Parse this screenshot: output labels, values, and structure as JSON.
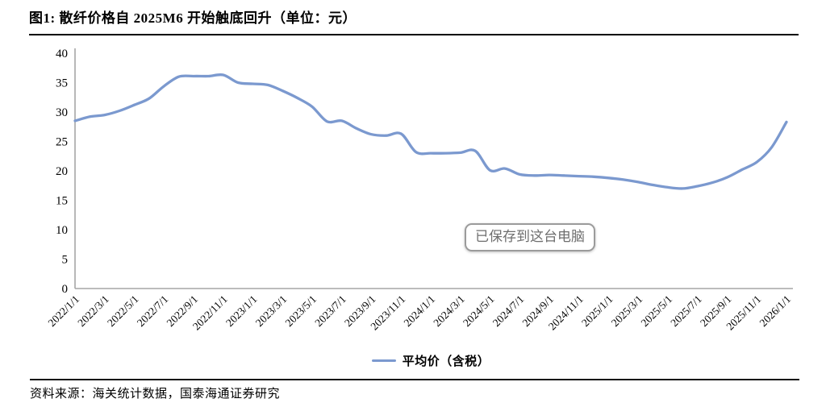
{
  "figure": {
    "title": "图1: 散纤价格自 2025M6 开始触底回升（单位：元）",
    "source": "资料来源：海关统计数据，国泰海通证券研究"
  },
  "toast": {
    "text": "已保存到这台电脑"
  },
  "legend": {
    "label": "平均价（含税）"
  },
  "colors": {
    "line": "#7b99cf",
    "axis": "#a6a6a6",
    "rule": "#000000",
    "toast_border": "#9b9b9b",
    "toast_text": "#6e6e6e"
  },
  "chart_data": {
    "type": "line",
    "title": "图1: 散纤价格自 2025M6 开始触底回升（单位：元）",
    "unit": "元",
    "ylim": [
      0,
      40
    ],
    "yticks": [
      0,
      5,
      10,
      15,
      20,
      25,
      30,
      35,
      40
    ],
    "grid": false,
    "legend_position": "bottom",
    "x_tick_labels": [
      "2022/1/1",
      "2022/3/1",
      "2022/5/1",
      "2022/7/1",
      "2022/9/1",
      "2022/11/1",
      "2023/1/1",
      "2023/3/1",
      "2023/5/1",
      "2023/7/1",
      "2023/9/1",
      "2023/11/1",
      "2024/1/1",
      "2024/3/1",
      "2024/5/1",
      "2024/7/1",
      "2024/9/1",
      "2024/11/1",
      "2025/1/1",
      "2025/3/1",
      "2025/5/1",
      "2025/7/1",
      "2025/9/1",
      "2025/11/1",
      "2026/1/1"
    ],
    "series": [
      {
        "name": "平均价（含税）",
        "color": "#7b99cf",
        "x": [
          "2022/1",
          "2022/2",
          "2022/3",
          "2022/4",
          "2022/5",
          "2022/6",
          "2022/7",
          "2022/8",
          "2022/9",
          "2022/10",
          "2022/11",
          "2022/12",
          "2023/1",
          "2023/2",
          "2023/3",
          "2023/4",
          "2023/5",
          "2023/6",
          "2023/7",
          "2023/8",
          "2023/9",
          "2023/10",
          "2023/11",
          "2023/12",
          "2024/1",
          "2024/2",
          "2024/3",
          "2024/4",
          "2024/5",
          "2024/6",
          "2024/7",
          "2024/8",
          "2024/9",
          "2024/10",
          "2024/11",
          "2024/12",
          "2025/1",
          "2025/2",
          "2025/3",
          "2025/4",
          "2025/5",
          "2025/6",
          "2025/7",
          "2025/8",
          "2025/9",
          "2025/10",
          "2025/11",
          "2025/12",
          "2026/1"
        ],
        "values": [
          28.5,
          29.2,
          29.5,
          30.2,
          31.2,
          32.3,
          34.4,
          36.0,
          36.1,
          36.1,
          36.3,
          35.0,
          34.8,
          34.6,
          33.6,
          32.4,
          30.9,
          28.4,
          28.5,
          27.2,
          26.2,
          26.0,
          26.3,
          23.2,
          23.0,
          23.0,
          23.1,
          23.4,
          20.1,
          20.4,
          19.4,
          19.2,
          19.3,
          19.2,
          19.1,
          19.0,
          18.8,
          18.5,
          18.1,
          17.6,
          17.2,
          17.0,
          17.4,
          18.0,
          18.9,
          20.2,
          21.5,
          24.0,
          28.3
        ]
      }
    ]
  }
}
